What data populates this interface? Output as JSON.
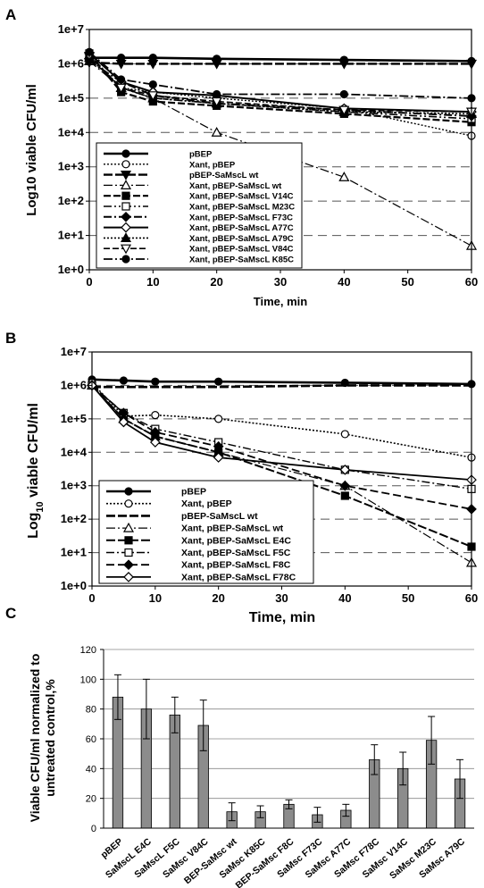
{
  "chart_data": [
    {
      "panel": "A",
      "type": "line",
      "xlabel": "Time, min",
      "ylabel": "Log10 viable CFU/ml",
      "log_y": true,
      "xlim": [
        0,
        60
      ],
      "ylim": [
        1,
        10000000
      ],
      "x_ticks": [
        "0",
        "10",
        "20",
        "30",
        "40",
        "50",
        "60"
      ],
      "y_ticks": [
        "1e+0",
        "1e+1",
        "1e+2",
        "1e+3",
        "1e+4",
        "1e+5",
        "1e+6",
        "1e+7"
      ],
      "x": [
        0,
        5,
        10,
        20,
        40,
        60
      ],
      "series": [
        {
          "name": "pBEP",
          "values": [
            1500000,
            1500000,
            1500000,
            1400000,
            1300000,
            1200000
          ]
        },
        {
          "name": "Xant, pBEP",
          "values": [
            1500000,
            200000,
            150000,
            100000,
            50000,
            8000
          ]
        },
        {
          "name": "pBEP-SaMscL wt",
          "values": [
            1100000,
            1000000,
            1000000,
            1000000,
            1000000,
            1000000
          ]
        },
        {
          "name": "Xant, pBEP-SaMscL wt",
          "values": [
            1200000,
            200000,
            100000,
            10000,
            500,
            5
          ]
        },
        {
          "name": "Xant, pBEP-SaMscL V14C",
          "values": [
            2000000,
            150000,
            80000,
            60000,
            35000,
            20000
          ]
        },
        {
          "name": "Xant, pBEP-SaMscL M23C",
          "values": [
            1500000,
            200000,
            100000,
            70000,
            40000,
            25000
          ]
        },
        {
          "name": "Xant, pBEP-SaMscL F73C",
          "values": [
            1200000,
            300000,
            120000,
            70000,
            45000,
            30000
          ]
        },
        {
          "name": "Xant, pBEP-SaMscL A77C",
          "values": [
            2000000,
            300000,
            150000,
            120000,
            50000,
            40000
          ]
        },
        {
          "name": "Xant, pBEP-SaMscL A79C",
          "values": [
            1800000,
            200000,
            100000,
            70000,
            40000,
            35000
          ]
        },
        {
          "name": "Xant, pBEP-SaMscL V84C",
          "values": [
            1700000,
            200000,
            120000,
            80000,
            45000,
            40000
          ]
        },
        {
          "name": "Xant, pBEP-SaMscL K85C",
          "values": [
            2200000,
            350000,
            250000,
            130000,
            130000,
            100000
          ]
        }
      ]
    },
    {
      "panel": "B",
      "type": "line",
      "xlabel": "Time, min",
      "ylabel": "Log10 viable CFU/ml",
      "log_y": true,
      "xlim": [
        0,
        60
      ],
      "ylim": [
        1,
        10000000
      ],
      "x_ticks": [
        "0",
        "10",
        "20",
        "30",
        "40",
        "50",
        "60"
      ],
      "y_ticks": [
        "1e+0",
        "1e+1",
        "1e+2",
        "1e+3",
        "1e+4",
        "1e+5",
        "1e+6",
        "1e+7"
      ],
      "x": [
        0,
        5,
        10,
        20,
        40,
        60
      ],
      "series": [
        {
          "name": "pBEP",
          "values": [
            1500000,
            1400000,
            1300000,
            1300000,
            1200000,
            1100000
          ]
        },
        {
          "name": "Xant, pBEP",
          "values": [
            1200000,
            120000,
            130000,
            100000,
            35000,
            7000
          ]
        },
        {
          "name": "pBEP-SaMscL wt",
          "values": [
            900000,
            900000,
            900000,
            900000,
            1000000,
            1000000
          ]
        },
        {
          "name": "Xant, pBEP-SaMscL wt",
          "values": [
            1000000,
            100000,
            30000,
            10000,
            1000,
            5
          ]
        },
        {
          "name": "Xant, pBEP-SaMscL E4C",
          "values": [
            1000000,
            100000,
            30000,
            10000,
            500,
            15
          ]
        },
        {
          "name": "Xant, pBEP-SaMscL F5C",
          "values": [
            1000000,
            150000,
            50000,
            20000,
            3000,
            800
          ]
        },
        {
          "name": "Xant, pBEP-SaMscL F8C",
          "values": [
            1000000,
            150000,
            40000,
            15000,
            1000,
            200
          ]
        },
        {
          "name": "Xant, pBEP-SaMscL F78C",
          "values": [
            1000000,
            80000,
            20000,
            7000,
            3000,
            1500
          ]
        }
      ]
    },
    {
      "panel": "C",
      "type": "bar",
      "ylabel": "Viable CFU/ml normalized to untreated control,%",
      "ylim": [
        0,
        120
      ],
      "y_ticks": [
        "0",
        "20",
        "40",
        "60",
        "80",
        "100",
        "120"
      ],
      "categories": [
        "pBEP",
        "SaMscL E4C",
        "SaMscL F5C",
        "SaMsc V84C",
        "BEP-SaMsc wt",
        "SaMsc K85C",
        "BEP-SaMsc F8C",
        "SaMsc F73C",
        "SaMsc A77C",
        "SaMsc F78C",
        "SaMsc V14C",
        "SaMsc M23C",
        "SaMsc A79C"
      ],
      "values": [
        88,
        80,
        76,
        69,
        11,
        11,
        16,
        9,
        12,
        46,
        40,
        59,
        33
      ],
      "errors": [
        15,
        20,
        12,
        17,
        6,
        4,
        3,
        5,
        4,
        10,
        11,
        16,
        13
      ]
    }
  ],
  "panel_labels": [
    "A",
    "B",
    "C"
  ]
}
